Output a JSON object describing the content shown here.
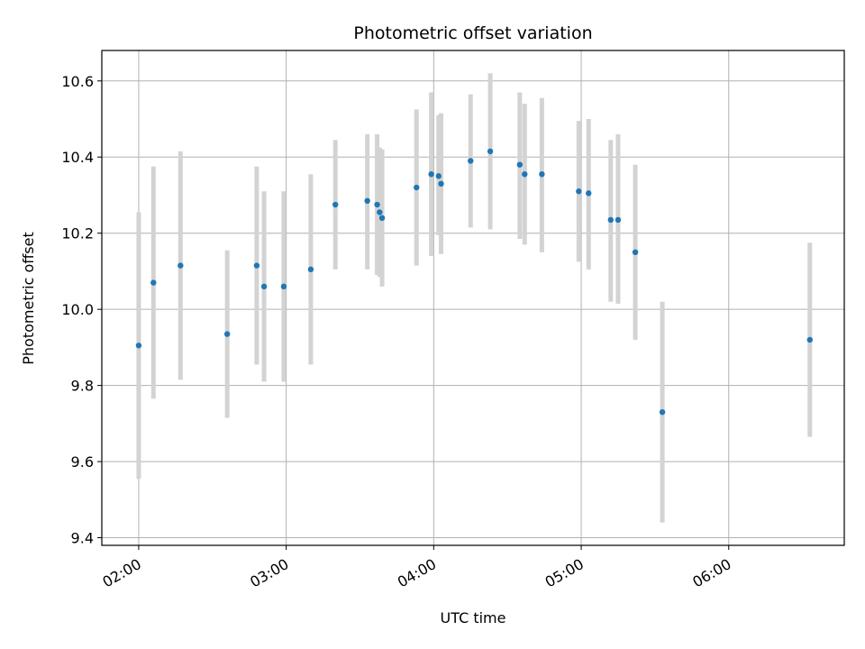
{
  "chart_data": {
    "type": "scatter",
    "title": "Photometric offset variation",
    "xlabel": "UTC time",
    "ylabel": "Photometric offset",
    "x_unit": "UTC hh:mm",
    "xlim": [
      "01:45",
      "06:47"
    ],
    "ylim": [
      9.38,
      10.68
    ],
    "xticks": [
      "02:00",
      "03:00",
      "04:00",
      "05:00",
      "06:00"
    ],
    "yticks": [
      "9.4",
      "9.6",
      "9.8",
      "10.0",
      "10.2",
      "10.4",
      "10.6"
    ],
    "grid": true,
    "colors": {
      "marker": "#1f77b4",
      "errorbar": "#d3d3d3",
      "grid": "#b0b0b0",
      "axes": "#000000"
    },
    "series": [
      {
        "points": [
          {
            "x": "02:00",
            "y": 9.905,
            "low": 9.555,
            "high": 10.255
          },
          {
            "x": "02:06",
            "y": 10.07,
            "low": 9.765,
            "high": 10.375
          },
          {
            "x": "02:17",
            "y": 10.115,
            "low": 9.815,
            "high": 10.415
          },
          {
            "x": "02:36",
            "y": 9.935,
            "low": 9.715,
            "high": 10.155
          },
          {
            "x": "02:48",
            "y": 10.115,
            "low": 9.855,
            "high": 10.375
          },
          {
            "x": "02:51",
            "y": 10.06,
            "low": 9.81,
            "high": 10.31
          },
          {
            "x": "02:59",
            "y": 10.06,
            "low": 9.81,
            "high": 10.31
          },
          {
            "x": "03:10",
            "y": 10.105,
            "low": 9.855,
            "high": 10.355
          },
          {
            "x": "03:20",
            "y": 10.275,
            "low": 10.105,
            "high": 10.445
          },
          {
            "x": "03:33",
            "y": 10.285,
            "low": 10.105,
            "high": 10.46
          },
          {
            "x": "03:37",
            "y": 10.275,
            "low": 10.09,
            "high": 10.46
          },
          {
            "x": "03:38",
            "y": 10.255,
            "low": 10.085,
            "high": 10.425
          },
          {
            "x": "03:39",
            "y": 10.24,
            "low": 10.06,
            "high": 10.42
          },
          {
            "x": "03:53",
            "y": 10.32,
            "low": 10.115,
            "high": 10.525
          },
          {
            "x": "03:59",
            "y": 10.355,
            "low": 10.14,
            "high": 10.57
          },
          {
            "x": "04:02",
            "y": 10.35,
            "low": 10.195,
            "high": 10.51
          },
          {
            "x": "04:03",
            "y": 10.33,
            "low": 10.145,
            "high": 10.515
          },
          {
            "x": "04:15",
            "y": 10.39,
            "low": 10.215,
            "high": 10.565
          },
          {
            "x": "04:23",
            "y": 10.415,
            "low": 10.21,
            "high": 10.62
          },
          {
            "x": "04:35",
            "y": 10.38,
            "low": 10.185,
            "high": 10.57
          },
          {
            "x": "04:37",
            "y": 10.355,
            "low": 10.17,
            "high": 10.54
          },
          {
            "x": "04:44",
            "y": 10.355,
            "low": 10.15,
            "high": 10.555
          },
          {
            "x": "04:59",
            "y": 10.31,
            "low": 10.125,
            "high": 10.495
          },
          {
            "x": "05:03",
            "y": 10.305,
            "low": 10.105,
            "high": 10.5
          },
          {
            "x": "05:12",
            "y": 10.235,
            "low": 10.02,
            "high": 10.445
          },
          {
            "x": "05:15",
            "y": 10.235,
            "low": 10.015,
            "high": 10.46
          },
          {
            "x": "05:22",
            "y": 10.15,
            "low": 9.92,
            "high": 10.38
          },
          {
            "x": "05:33",
            "y": 9.73,
            "low": 9.44,
            "high": 10.02
          },
          {
            "x": "06:33",
            "y": 9.92,
            "low": 9.665,
            "high": 10.175
          }
        ]
      }
    ]
  }
}
